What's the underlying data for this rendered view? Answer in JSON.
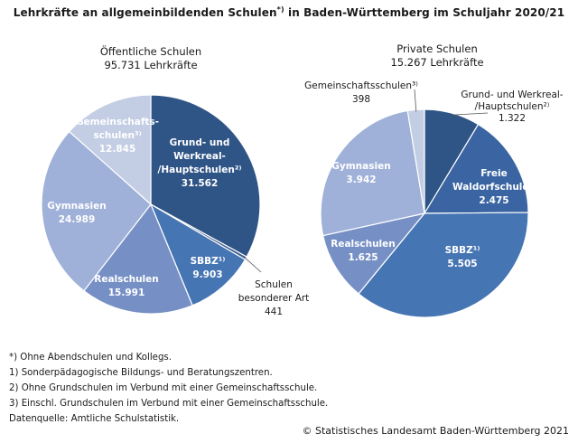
{
  "title": {
    "main": "Lehrkräfte an allgemeinbildenden Schulen",
    "sup": "*)",
    "rest": " in Baden-Württemberg im Schuljahr 2020/21"
  },
  "chart_data": [
    {
      "type": "pie",
      "title": "Öffentliche Schulen",
      "subtitle": "95.731 Lehrkräfte",
      "slices": [
        {
          "key": "gwhs",
          "lines": [
            "Grund- und",
            "Werkreal-",
            "/Hauptschulen²⁾"
          ],
          "value": 31562,
          "value_label": "31.562",
          "color": "#2f5486"
        },
        {
          "key": "sonder",
          "lines": [
            "Schulen",
            "besonderer Art"
          ],
          "value": 441,
          "value_label": "441",
          "color": "#3c5d8e"
        },
        {
          "key": "sbbz",
          "lines": [
            "SBBZ¹⁾"
          ],
          "value": 9903,
          "value_label": "9.903",
          "color": "#4675b3"
        },
        {
          "key": "real",
          "lines": [
            "Realschulen"
          ],
          "value": 15991,
          "value_label": "15.991",
          "color": "#7690c5"
        },
        {
          "key": "gym",
          "lines": [
            "Gymnasien"
          ],
          "value": 24989,
          "value_label": "24.989",
          "color": "#9fb1d8"
        },
        {
          "key": "gms",
          "lines": [
            "Gemeinschafts-",
            "schulen³⁾"
          ],
          "value": 12845,
          "value_label": "12.845",
          "color": "#c3cde4"
        }
      ]
    },
    {
      "type": "pie",
      "title": "Private Schulen",
      "subtitle": "15.267 Lehrkräfte",
      "slices": [
        {
          "key": "gwhs",
          "lines": [
            "Grund- und Werkreal-",
            "/Hauptschulen²⁾"
          ],
          "value": 1322,
          "value_label": "1.322",
          "color": "#2f5486"
        },
        {
          "key": "waldorf",
          "lines": [
            "Freie",
            "Waldorfschulen"
          ],
          "value": 2475,
          "value_label": "2.475",
          "color": "#3a65a2"
        },
        {
          "key": "sbbz",
          "lines": [
            "SBBZ¹⁾"
          ],
          "value": 5505,
          "value_label": "5.505",
          "color": "#4675b3"
        },
        {
          "key": "real",
          "lines": [
            "Realschulen"
          ],
          "value": 1625,
          "value_label": "1.625",
          "color": "#7690c5"
        },
        {
          "key": "gym",
          "lines": [
            "Gymnasien"
          ],
          "value": 3942,
          "value_label": "3.942",
          "color": "#9fb1d8"
        },
        {
          "key": "gms",
          "lines": [
            "Gemeinschaftsschulen³⁾"
          ],
          "value": 398,
          "value_label": "398",
          "color": "#c3cde4"
        }
      ]
    }
  ],
  "footnotes": [
    "*) Ohne Abendschulen und Kollegs.",
    "1) Sonderpädagogische Bildungs- und Beratungszentren.",
    "2) Ohne Grundschulen im Verbund mit einer Gemeinschaftsschule.",
    "3) Einschl. Grundschulen im Verbund mit einer Gemeinschaftsschule.",
    "Datenquelle: Amtliche Schulstatistik."
  ],
  "copyright": "© Statistisches Landesamt Baden-Württemberg 2021"
}
